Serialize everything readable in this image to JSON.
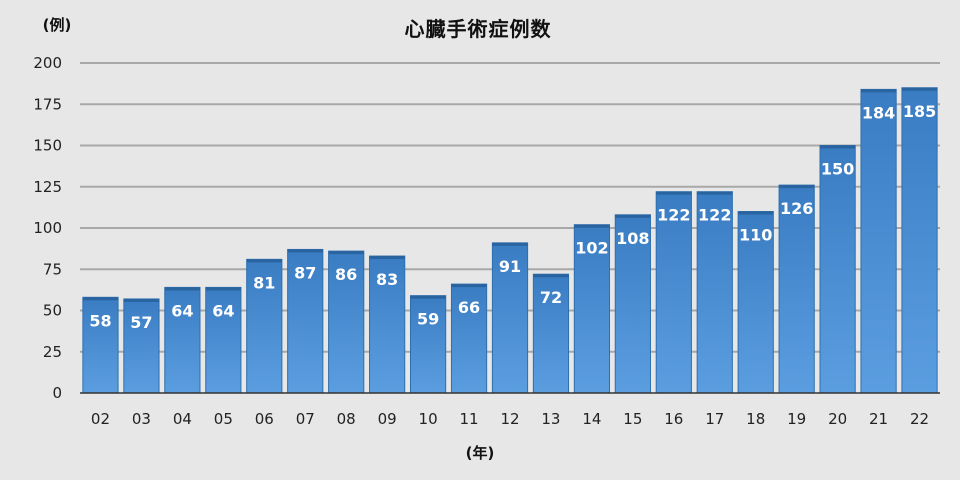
{
  "chart_data": {
    "type": "bar",
    "title": "心臓手術症例数",
    "ylabel": "(例)",
    "xlabel": "(年)",
    "categories": [
      "02",
      "03",
      "04",
      "05",
      "06",
      "07",
      "08",
      "09",
      "10",
      "11",
      "12",
      "13",
      "14",
      "15",
      "16",
      "17",
      "18",
      "19",
      "20",
      "21",
      "22"
    ],
    "values": [
      58,
      57,
      64,
      64,
      81,
      87,
      86,
      83,
      59,
      66,
      91,
      72,
      102,
      108,
      122,
      122,
      110,
      126,
      150,
      184,
      185
    ],
    "ylim": [
      0,
      200
    ],
    "yticks": [
      0,
      25,
      50,
      75,
      100,
      125,
      150,
      175,
      200
    ],
    "grid": true,
    "data_labels": true,
    "colors": {
      "bar": "#4a8fd4",
      "bar_dark": "#2f6fae",
      "background": "#e7e7e7",
      "grid": "#a8a8a8"
    }
  }
}
